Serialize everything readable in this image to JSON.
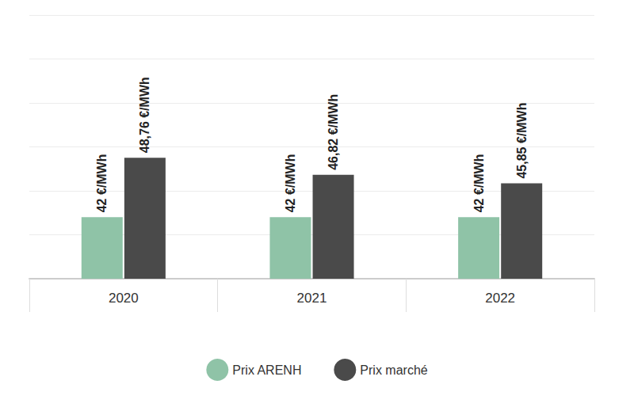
{
  "chart_data": {
    "type": "bar",
    "categories": [
      "2020",
      "2021",
      "2022"
    ],
    "series": [
      {
        "name": "Prix ARENH",
        "color": "#8fc3a7",
        "values": [
          42,
          42,
          42
        ],
        "value_labels": [
          "42 €/MWh",
          "42 €/MWh",
          "42 €/MWh"
        ]
      },
      {
        "name": "Prix marché",
        "color": "#4a4a4a",
        "values": [
          48.76,
          46.82,
          45.85
        ],
        "value_labels": [
          "48,76 €/MWh",
          "46,82 €/MWh",
          "45,85 €/MWh"
        ]
      }
    ],
    "ylim": [
      35,
      65
    ],
    "yticks": [
      35,
      40,
      45,
      50,
      55,
      60,
      65
    ],
    "grid": true,
    "data_labels": true,
    "tick_labels": "x",
    "legend": "bottom"
  }
}
